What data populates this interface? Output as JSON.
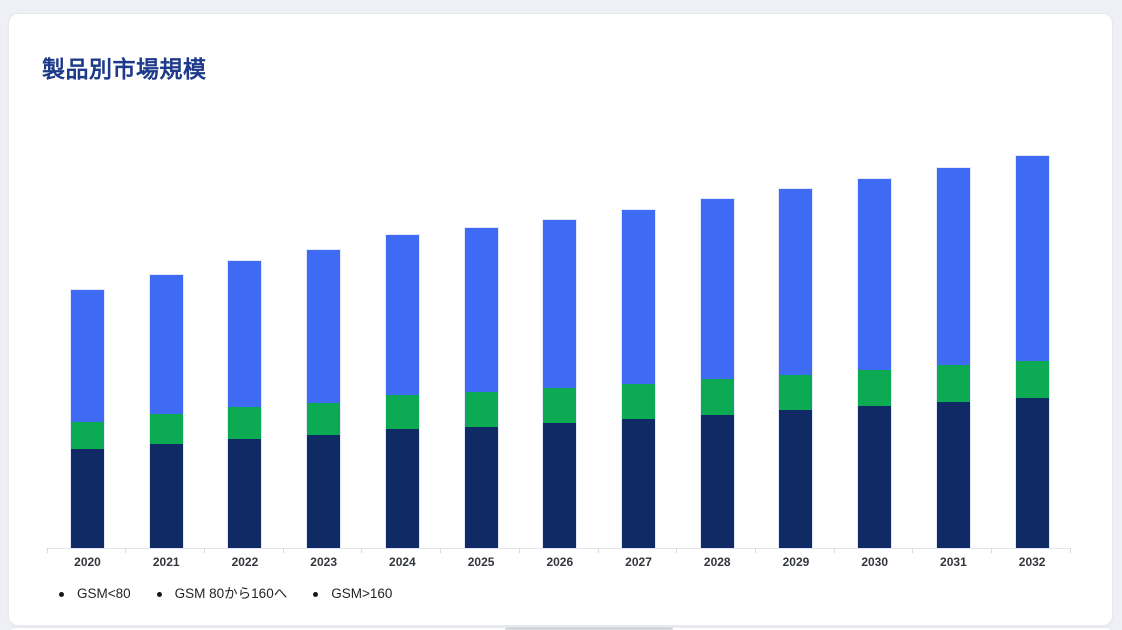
{
  "page": {
    "background": "#eef0f5"
  },
  "card": {
    "background": "#ffffff",
    "border": "#e6e9ef"
  },
  "chart_data": {
    "type": "bar",
    "stacked": true,
    "title": "製品別市場規模",
    "xlabel": "",
    "ylabel": "",
    "y_axis_visible": false,
    "grid": false,
    "units": "relative height (no value axis shown in chart)",
    "categories": [
      "2020",
      "2021",
      "2022",
      "2023",
      "2024",
      "2025",
      "2026",
      "2027",
      "2028",
      "2029",
      "2030",
      "2031",
      "2032"
    ],
    "series": [
      {
        "name": "GSM<80",
        "color": "#0f2a64",
        "values": [
          99,
          104,
          109,
          113,
          119,
          121,
          125,
          129,
          133,
          138,
          142,
          146,
          150
        ]
      },
      {
        "name": "GSM 80から160へ",
        "color": "#0caa53",
        "values": [
          27,
          30,
          32,
          32,
          34,
          35,
          35,
          35,
          36,
          35,
          36,
          37,
          37
        ]
      },
      {
        "name": "GSM>160",
        "color": "#3e6af4",
        "values": [
          132,
          139,
          146,
          153,
          160,
          164,
          168,
          174,
          180,
          186,
          191,
          197,
          205
        ]
      }
    ],
    "totals": [
      258,
      273,
      287,
      298,
      313,
      320,
      328,
      338,
      349,
      359,
      369,
      380,
      392
    ],
    "legend": {
      "position": "bottom-left",
      "bullet_color": "#17181a"
    }
  },
  "colors": {
    "title": "#1e3a8a",
    "bar_navy": "#0f2a64",
    "bar_green": "#0caa53",
    "bar_blue": "#3e6af4",
    "axis_line": "#e2e5e9",
    "tick": "#d7dade",
    "x_label": "#33373d",
    "legend_text": "#1f2125",
    "page_bg": "#eef0f5",
    "card_bg": "#ffffff",
    "scroll_thumb": "#d4d7dc"
  }
}
